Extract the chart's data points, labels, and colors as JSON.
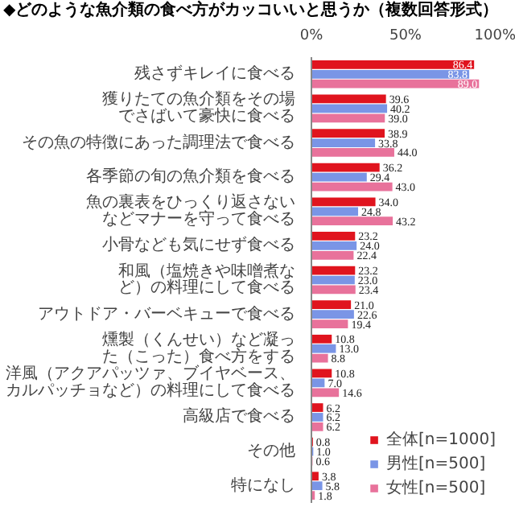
{
  "chart_data": {
    "type": "bar",
    "orientation": "horizontal",
    "title": "◆どのような魚介類の食べ方がカッコいいと思うか（複数回答形式）",
    "categories": [
      "残さずキレイに食べる",
      "獲りたての魚介類をその場でさばいて豪快に食べる",
      "その魚の特徴にあった調理法で食べる",
      "各季節の旬の魚介類を食べる",
      "魚の裏表をひっくり返さないなどマナーを守って食べる",
      "小骨なども気にせず食べる",
      "和風（塩焼きや味噌煮など）の料理にして食べる",
      "アウトドア・バーベキューで食べる",
      "燻製（くんせい）など凝った（こった）食べ方をする",
      "洋風（アクアパッツァ、ブイヤベース、カルパッチョなど）の料理にして食べる",
      "高級店で食べる",
      "その他",
      "特になし"
    ],
    "series": [
      {
        "name": "全体[n=1000]",
        "color": "#e0141e",
        "values": [
          86.4,
          39.6,
          38.9,
          36.2,
          34.0,
          23.2,
          23.2,
          21.0,
          10.8,
          10.8,
          6.2,
          0.8,
          3.8
        ],
        "value_labels": [
          "86.4",
          "39.6",
          "38.9",
          "36.2",
          "34.0",
          "23.2",
          "23.2",
          "21.0",
          "10.8",
          "10.8",
          "6.2",
          "0.8",
          "3.8"
        ]
      },
      {
        "name": "男性[n=500]",
        "color": "#7a95e6",
        "values": [
          83.8,
          40.2,
          33.8,
          29.4,
          24.8,
          24.0,
          23.0,
          22.6,
          13.0,
          7.0,
          6.2,
          1.0,
          5.8
        ],
        "value_labels": [
          "83.8",
          "40.2",
          "33.8",
          "29.4",
          "24.8",
          "24.0",
          "23.0",
          "22.6",
          "13.0",
          "7.0",
          "6.2",
          "1.0",
          "5.8"
        ]
      },
      {
        "name": "女性[n=500]",
        "color": "#e8729b",
        "values": [
          89.0,
          39.0,
          44.0,
          43.0,
          43.2,
          22.4,
          23.4,
          19.4,
          8.8,
          14.6,
          6.2,
          0.6,
          1.8
        ],
        "value_labels": [
          "89.0",
          "39.0",
          "44.0",
          "43.0",
          "43.2",
          "22.4",
          "23.4",
          "19.4",
          "8.8",
          "14.6",
          "6.2",
          "0.6",
          "1.8"
        ]
      }
    ],
    "xlim": [
      0,
      100
    ],
    "xticks": [
      {
        "value": 0,
        "label": "0%"
      },
      {
        "value": 50,
        "label": "50%"
      },
      {
        "value": 100,
        "label": "100%"
      }
    ],
    "legend": "bottom right",
    "grid": false
  }
}
